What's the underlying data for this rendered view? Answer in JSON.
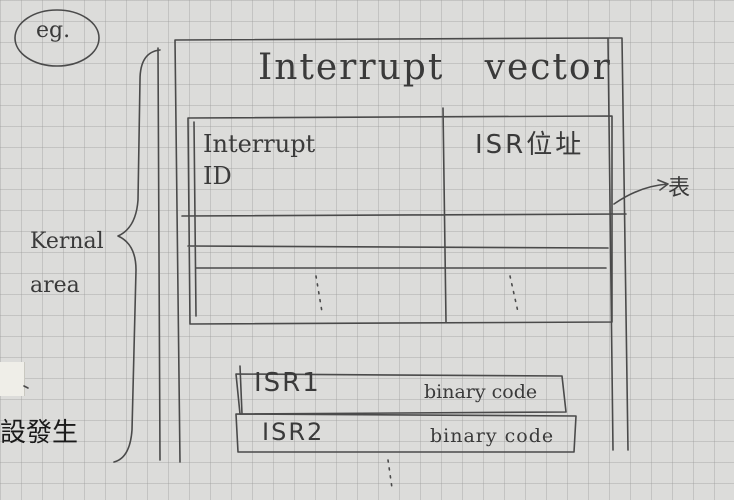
{
  "annotations": {
    "eg": "eg.",
    "kernel_area": [
      "Kernal",
      "area"
    ],
    "table_note": "表",
    "margin_text": "設發生"
  },
  "vector": {
    "title": "Interrupt   vector",
    "columns": [
      "Interrupt\nID",
      "ISR位址"
    ]
  },
  "isr_blocks": [
    {
      "name": "ISR1",
      "code": "binary code"
    },
    {
      "name": "ISR2",
      "code": "binary code"
    }
  ],
  "ink_color": "#3c3c3c",
  "paper_color": "#dcdcda"
}
